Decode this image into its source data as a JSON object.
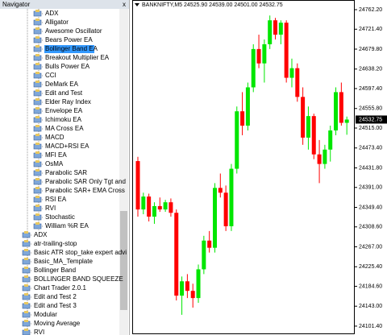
{
  "navigator": {
    "title": "Navigator",
    "close": "x",
    "indicator_items": [
      "ADX",
      "Alligator",
      "Awesome Oscillator",
      "Bears Power EA",
      "Bollinger Band EA",
      "Breakout Multiplier EA",
      "Bulls Power EA",
      "CCI",
      "DeMark EA",
      "Edit and Test",
      "Elder Ray Index",
      "Envelope EA",
      "Ichimoku EA",
      "MA Cross EA",
      "MACD",
      "MACD+RSI EA",
      "MFI EA",
      "OsMA",
      "Parabolic SAR",
      "Parabolic SAR Only Tgt and",
      "Parabolic SAR+ EMA Cross",
      "RSI EA",
      "RVI",
      "Stochastic",
      "William %R EA"
    ],
    "expert_items": [
      "ADX",
      "atr-trailing-stop",
      "Basic ATR stop_take expert advi",
      "Basic_MA_Template",
      "Bollinger Band",
      "BOLLINGER BAND SQUEEZE",
      "Chart Trader 2.0.1",
      "Edit and Test 2",
      "Edit and Test 3",
      "Modular",
      "Moving Average",
      "RVI"
    ]
  },
  "chart_data": {
    "type": "candlestick",
    "header": {
      "symbol": "BANKNIFTY,M5",
      "open": "24525.90",
      "high": "24539.00",
      "low": "24501.00",
      "close": "24532.75"
    },
    "open": [
      24446,
      24345,
      24372,
      24330,
      24352,
      24345,
      24360,
      24338,
      24165,
      24195,
      24175,
      24160,
      24220,
      24280,
      24265,
      24390,
      24380,
      24310,
      24430,
      24550,
      24520,
      24600,
      24680,
      24650,
      24690,
      24740,
      24710,
      24735,
      24620,
      24640,
      24580,
      24495,
      24540,
      24460,
      24440,
      24470,
      24510,
      24590,
      24525.9
    ],
    "high": [
      24455,
      24380,
      24378,
      24360,
      24370,
      24365,
      24368,
      24345,
      24205,
      24210,
      24190,
      24230,
      24290,
      24300,
      24400,
      24420,
      24395,
      24440,
      24560,
      24590,
      24610,
      24690,
      24710,
      24700,
      24750,
      24745,
      24740,
      24740,
      24660,
      24650,
      24600,
      24560,
      24545,
      24490,
      24480,
      24520,
      24600,
      24610,
      24539
    ],
    "low": [
      24330,
      24335,
      24320,
      24315,
      24340,
      24340,
      24330,
      24155,
      24125,
      24160,
      24140,
      24150,
      24210,
      24255,
      24255,
      24370,
      24300,
      24300,
      24420,
      24500,
      24510,
      24590,
      24640,
      24610,
      24680,
      24700,
      24690,
      24610,
      24600,
      24570,
      24480,
      24470,
      24450,
      24400,
      24430,
      24445,
      24500,
      24520,
      24501
    ],
    "close": [
      24345,
      24372,
      24330,
      24352,
      24345,
      24360,
      24338,
      24165,
      24195,
      24175,
      24160,
      24220,
      24280,
      24265,
      24390,
      24380,
      24310,
      24430,
      24550,
      24520,
      24600,
      24680,
      24650,
      24690,
      24740,
      24710,
      24735,
      24620,
      24640,
      24580,
      24495,
      24540,
      24460,
      24440,
      24470,
      24510,
      24590,
      24525.9,
      24532.75
    ],
    "up_color": "#00e600",
    "down_color": "#ff0000",
    "current_price": 24532.75,
    "ylim": [
      24086.2,
      24782.4
    ],
    "yticks": [
      {
        "value": 24762.2,
        "label": "24762.20"
      },
      {
        "value": 24721.4,
        "label": "24721.40"
      },
      {
        "value": 24679.8,
        "label": "24679.80"
      },
      {
        "value": 24638.2,
        "label": "24638.20"
      },
      {
        "value": 24597.4,
        "label": "24597.40"
      },
      {
        "value": 24555.8,
        "label": "24555.80"
      },
      {
        "value": 24515,
        "label": "24515.00"
      },
      {
        "value": 24473.4,
        "label": "24473.40"
      },
      {
        "value": 24431.8,
        "label": "24431.80"
      },
      {
        "value": 24391,
        "label": "24391.00"
      },
      {
        "value": 24349.4,
        "label": "24349.40"
      },
      {
        "value": 24308.6,
        "label": "24308.60"
      },
      {
        "value": 24267,
        "label": "24267.00"
      },
      {
        "value": 24225.4,
        "label": "24225.40"
      },
      {
        "value": 24184.6,
        "label": "24184.60"
      },
      {
        "value": 24143,
        "label": "24143.00"
      },
      {
        "value": 24101.4,
        "label": "24101.40"
      }
    ]
  }
}
